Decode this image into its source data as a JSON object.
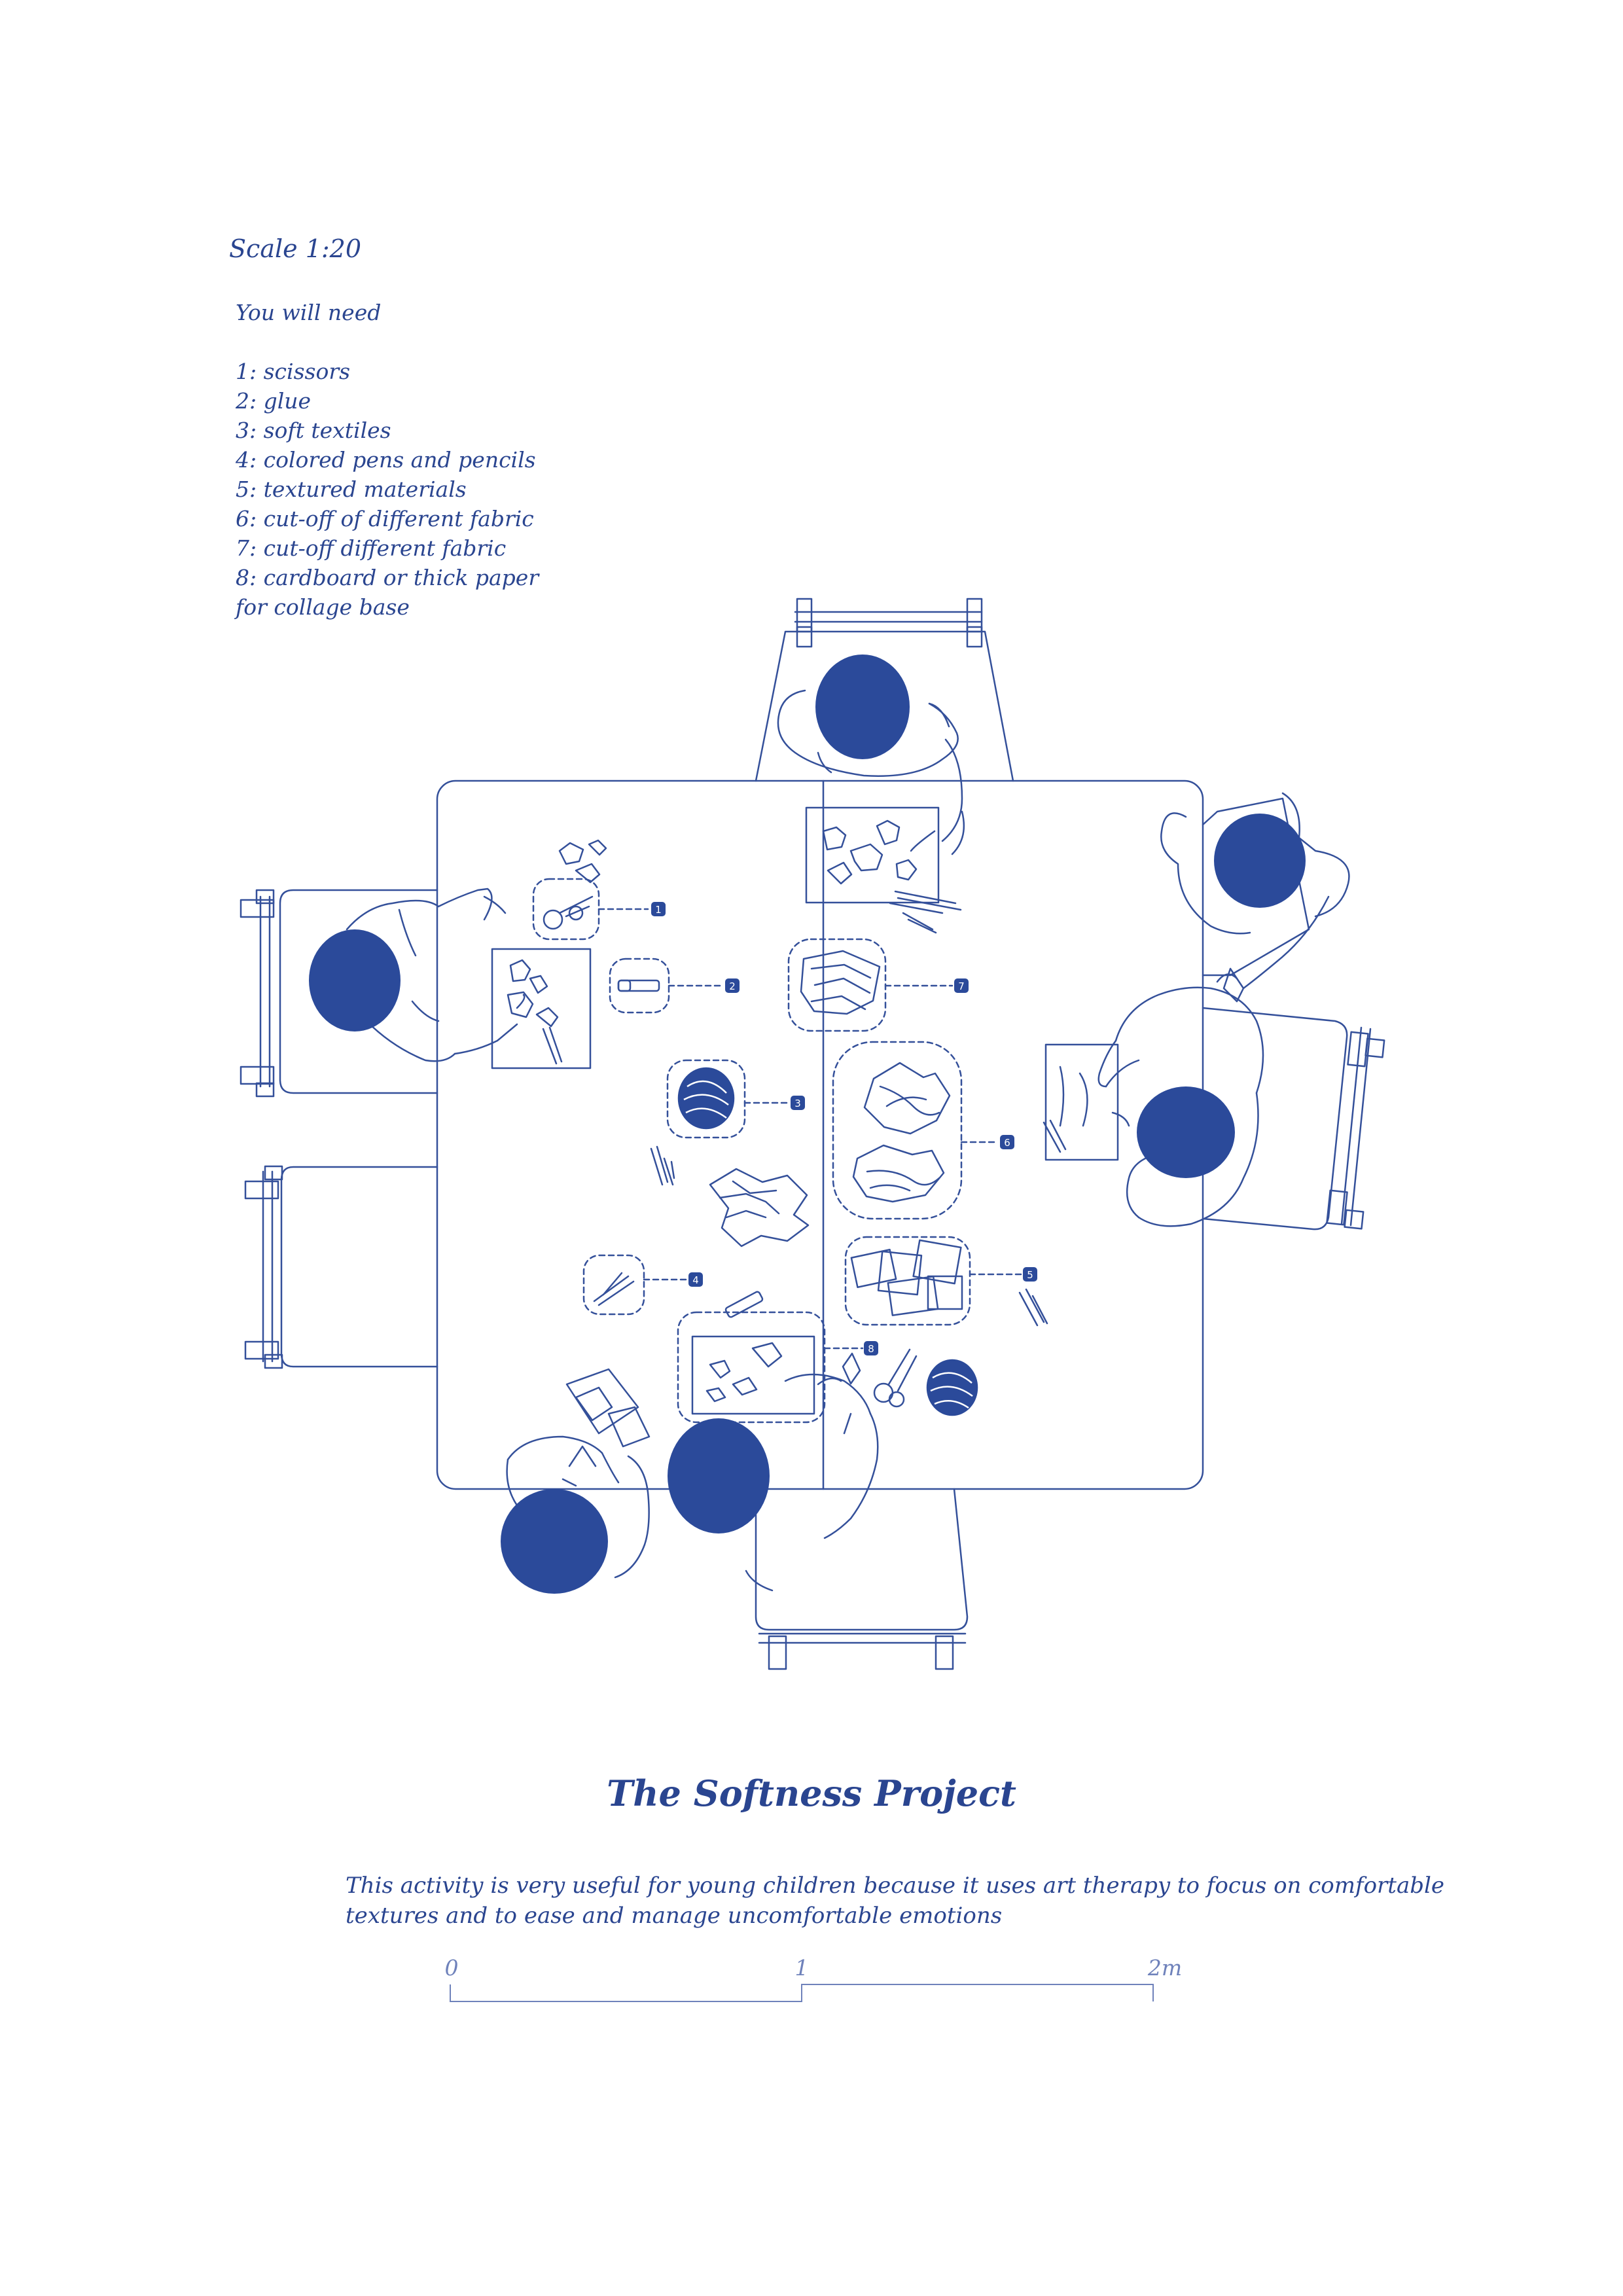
{
  "scale_label": "Scale 1:20",
  "materials": {
    "intro": "You will need",
    "items": [
      "1: scissors",
      "2: glue",
      "3: soft textiles",
      "4: colored pens and pencils",
      "5: textured materials",
      "6: cut-off of different fabric",
      "7: cut-off different fabric",
      "8: cardboard or thick paper",
      "for collage base"
    ]
  },
  "callouts": [
    "1",
    "2",
    "3",
    "4",
    "5",
    "6",
    "7",
    "8"
  ],
  "title": "The Softness Project",
  "description": {
    "line1": "This activity is very useful for young children because it uses art therapy to focus on comfortable",
    "line2": "textures and to ease and manage uncomfortable emotions"
  },
  "scale_bar": {
    "labels": [
      "0",
      "1",
      "2m"
    ]
  },
  "colors": {
    "ink": "#2a4590",
    "head": "#2b4a9a",
    "line": "#34509a"
  }
}
